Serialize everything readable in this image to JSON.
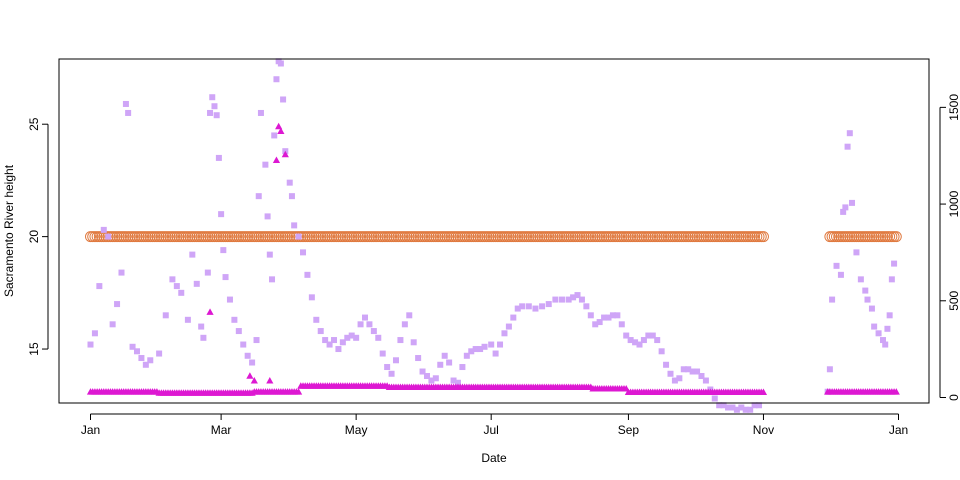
{
  "chart_data": {
    "type": "scatter",
    "title": "",
    "xlabel": "Date",
    "ylabel": "Sacramento River height",
    "x_axis": {
      "type": "date",
      "range": [
        "2011-01-01",
        "2012-01-01"
      ],
      "ticks": [
        {
          "date": "2011-01-01",
          "label": "Jan"
        },
        {
          "date": "2011-03-01",
          "label": "Mar"
        },
        {
          "date": "2011-05-01",
          "label": "May"
        },
        {
          "date": "2011-07-01",
          "label": "Jul"
        },
        {
          "date": "2011-09-01",
          "label": "Sep"
        },
        {
          "date": "2011-11-01",
          "label": "Nov"
        },
        {
          "date": "2012-01-01",
          "label": "Jan"
        }
      ]
    },
    "y_axis_left": {
      "range": [
        12.6,
        27.9
      ],
      "ticks": [
        {
          "value": 15,
          "label": "15"
        },
        {
          "value": 20,
          "label": "20"
        },
        {
          "value": 25,
          "label": "25"
        }
      ]
    },
    "y_axis_right": {
      "range": [
        0,
        1750
      ],
      "ticks": [
        {
          "value": 0,
          "label": "0"
        },
        {
          "value": 500,
          "label": "500"
        },
        {
          "value": 1000,
          "label": "1000"
        },
        {
          "value": 1500,
          "label": "1500"
        }
      ]
    },
    "grid": false,
    "legend": "none",
    "series": [
      {
        "axis": "left",
        "marker": "circle",
        "color": "#e07a40",
        "segments": [
          {
            "start": "2011-01-01",
            "end": "2011-11-01",
            "y": 20
          },
          {
            "start": "2011-12-01",
            "end": "2011-12-31",
            "y": 20
          }
        ]
      },
      {
        "axis": "left",
        "marker": "square",
        "color": "#cfa5f7",
        "gap": [
          "2011-11-02",
          "2011-11-29"
        ],
        "points": [
          [
            "2011-01-01",
            15.2
          ],
          [
            "2011-01-03",
            15.7
          ],
          [
            "2011-01-05",
            17.8
          ],
          [
            "2011-01-07",
            20.3
          ],
          [
            "2011-01-09",
            20.0
          ],
          [
            "2011-01-11",
            16.1
          ],
          [
            "2011-01-13",
            17.0
          ],
          [
            "2011-01-15",
            18.4
          ],
          [
            "2011-01-17",
            25.9
          ],
          [
            "2011-01-18",
            25.5
          ],
          [
            "2011-01-20",
            15.1
          ],
          [
            "2011-01-22",
            14.9
          ],
          [
            "2011-01-24",
            14.6
          ],
          [
            "2011-01-26",
            14.3
          ],
          [
            "2011-01-28",
            14.5
          ],
          [
            "2011-02-01",
            14.8
          ],
          [
            "2011-02-04",
            16.5
          ],
          [
            "2011-02-07",
            18.1
          ],
          [
            "2011-02-09",
            17.8
          ],
          [
            "2011-02-11",
            17.5
          ],
          [
            "2011-02-14",
            16.3
          ],
          [
            "2011-02-16",
            19.2
          ],
          [
            "2011-02-18",
            17.9
          ],
          [
            "2011-02-20",
            16.0
          ],
          [
            "2011-02-21",
            15.5
          ],
          [
            "2011-02-23",
            18.4
          ],
          [
            "2011-02-24",
            25.5
          ],
          [
            "2011-02-25",
            26.2
          ],
          [
            "2011-02-26",
            25.8
          ],
          [
            "2011-02-27",
            25.4
          ],
          [
            "2011-02-28",
            23.5
          ],
          [
            "2011-03-01",
            21.0
          ],
          [
            "2011-03-02",
            19.4
          ],
          [
            "2011-03-03",
            18.2
          ],
          [
            "2011-03-05",
            17.2
          ],
          [
            "2011-03-07",
            16.3
          ],
          [
            "2011-03-09",
            15.8
          ],
          [
            "2011-03-11",
            15.2
          ],
          [
            "2011-03-13",
            14.7
          ],
          [
            "2011-03-15",
            14.4
          ],
          [
            "2011-03-17",
            15.4
          ],
          [
            "2011-03-18",
            21.8
          ],
          [
            "2011-03-19",
            25.5
          ],
          [
            "2011-03-21",
            23.2
          ],
          [
            "2011-03-22",
            20.9
          ],
          [
            "2011-03-23",
            19.2
          ],
          [
            "2011-03-24",
            18.1
          ],
          [
            "2011-03-25",
            24.5
          ],
          [
            "2011-03-26",
            27.0
          ],
          [
            "2011-03-27",
            27.8
          ],
          [
            "2011-03-28",
            27.7
          ],
          [
            "2011-03-29",
            26.1
          ],
          [
            "2011-03-30",
            23.8
          ],
          [
            "2011-04-01",
            22.4
          ],
          [
            "2011-04-02",
            21.8
          ],
          [
            "2011-04-03",
            20.5
          ],
          [
            "2011-04-05",
            20.0
          ],
          [
            "2011-04-07",
            19.3
          ],
          [
            "2011-04-09",
            18.3
          ],
          [
            "2011-04-11",
            17.3
          ],
          [
            "2011-04-13",
            16.3
          ],
          [
            "2011-04-15",
            15.8
          ],
          [
            "2011-04-17",
            15.4
          ],
          [
            "2011-04-19",
            15.2
          ],
          [
            "2011-04-21",
            15.4
          ],
          [
            "2011-04-23",
            15.0
          ],
          [
            "2011-04-25",
            15.3
          ],
          [
            "2011-04-27",
            15.5
          ],
          [
            "2011-04-29",
            15.6
          ],
          [
            "2011-05-01",
            15.5
          ],
          [
            "2011-05-03",
            16.1
          ],
          [
            "2011-05-05",
            16.4
          ],
          [
            "2011-05-07",
            16.1
          ],
          [
            "2011-05-09",
            15.8
          ],
          [
            "2011-05-11",
            15.5
          ],
          [
            "2011-05-13",
            14.8
          ],
          [
            "2011-05-15",
            14.2
          ],
          [
            "2011-05-17",
            13.9
          ],
          [
            "2011-05-19",
            14.5
          ],
          [
            "2011-05-21",
            15.4
          ],
          [
            "2011-05-23",
            16.1
          ],
          [
            "2011-05-25",
            16.5
          ],
          [
            "2011-05-27",
            15.3
          ],
          [
            "2011-05-29",
            14.6
          ],
          [
            "2011-05-31",
            14.0
          ],
          [
            "2011-06-02",
            13.8
          ],
          [
            "2011-06-04",
            13.6
          ],
          [
            "2011-06-06",
            13.7
          ],
          [
            "2011-06-08",
            14.3
          ],
          [
            "2011-06-10",
            14.7
          ],
          [
            "2011-06-12",
            14.4
          ],
          [
            "2011-06-14",
            13.6
          ],
          [
            "2011-06-16",
            13.5
          ],
          [
            "2011-06-18",
            14.2
          ],
          [
            "2011-06-20",
            14.7
          ],
          [
            "2011-06-22",
            14.9
          ],
          [
            "2011-06-24",
            15.0
          ],
          [
            "2011-06-26",
            15.0
          ],
          [
            "2011-06-28",
            15.1
          ],
          [
            "2011-07-01",
            15.2
          ],
          [
            "2011-07-03",
            14.8
          ],
          [
            "2011-07-05",
            15.2
          ],
          [
            "2011-07-07",
            15.7
          ],
          [
            "2011-07-09",
            16.0
          ],
          [
            "2011-07-11",
            16.4
          ],
          [
            "2011-07-13",
            16.8
          ],
          [
            "2011-07-15",
            16.9
          ],
          [
            "2011-07-18",
            16.9
          ],
          [
            "2011-07-21",
            16.8
          ],
          [
            "2011-07-24",
            16.9
          ],
          [
            "2011-07-27",
            17.0
          ],
          [
            "2011-07-30",
            17.2
          ],
          [
            "2011-08-02",
            17.2
          ],
          [
            "2011-08-05",
            17.2
          ],
          [
            "2011-08-07",
            17.3
          ],
          [
            "2011-08-09",
            17.4
          ],
          [
            "2011-08-11",
            17.2
          ],
          [
            "2011-08-13",
            16.9
          ],
          [
            "2011-08-15",
            16.5
          ],
          [
            "2011-08-17",
            16.1
          ],
          [
            "2011-08-19",
            16.2
          ],
          [
            "2011-08-21",
            16.4
          ],
          [
            "2011-08-23",
            16.4
          ],
          [
            "2011-08-25",
            16.5
          ],
          [
            "2011-08-27",
            16.5
          ],
          [
            "2011-08-29",
            16.1
          ],
          [
            "2011-08-31",
            15.6
          ],
          [
            "2011-09-02",
            15.4
          ],
          [
            "2011-09-04",
            15.3
          ],
          [
            "2011-09-06",
            15.2
          ],
          [
            "2011-09-08",
            15.4
          ],
          [
            "2011-09-10",
            15.6
          ],
          [
            "2011-09-12",
            15.6
          ],
          [
            "2011-09-14",
            15.4
          ],
          [
            "2011-09-16",
            14.9
          ],
          [
            "2011-09-18",
            14.3
          ],
          [
            "2011-09-20",
            13.9
          ],
          [
            "2011-09-22",
            13.6
          ],
          [
            "2011-09-24",
            13.7
          ],
          [
            "2011-09-26",
            14.1
          ],
          [
            "2011-09-28",
            14.1
          ],
          [
            "2011-09-30",
            14.0
          ],
          [
            "2011-10-02",
            14.0
          ],
          [
            "2011-10-04",
            13.8
          ],
          [
            "2011-10-06",
            13.6
          ],
          [
            "2011-10-08",
            13.2
          ],
          [
            "2011-10-10",
            12.8
          ],
          [
            "2011-10-12",
            12.5
          ],
          [
            "2011-10-14",
            12.5
          ],
          [
            "2011-10-16",
            12.4
          ],
          [
            "2011-10-18",
            12.4
          ],
          [
            "2011-10-20",
            12.3
          ],
          [
            "2011-10-22",
            12.4
          ],
          [
            "2011-10-24",
            12.3
          ],
          [
            "2011-10-26",
            12.3
          ],
          [
            "2011-10-28",
            12.5
          ],
          [
            "2011-10-30",
            12.5
          ],
          [
            "2011-11-30",
            13.1
          ],
          [
            "2011-12-01",
            14.1
          ],
          [
            "2011-12-02",
            17.2
          ],
          [
            "2011-12-04",
            18.7
          ],
          [
            "2011-12-06",
            18.3
          ],
          [
            "2011-12-07",
            21.1
          ],
          [
            "2011-12-08",
            21.3
          ],
          [
            "2011-12-09",
            24.0
          ],
          [
            "2011-12-10",
            24.6
          ],
          [
            "2011-12-11",
            21.5
          ],
          [
            "2011-12-13",
            19.3
          ],
          [
            "2011-12-15",
            18.1
          ],
          [
            "2011-12-17",
            17.6
          ],
          [
            "2011-12-18",
            17.2
          ],
          [
            "2011-12-20",
            16.8
          ],
          [
            "2011-12-21",
            16.0
          ],
          [
            "2011-12-23",
            15.7
          ],
          [
            "2011-12-25",
            15.4
          ],
          [
            "2011-12-26",
            15.2
          ],
          [
            "2011-12-27",
            15.9
          ],
          [
            "2011-12-28",
            16.5
          ],
          [
            "2011-12-29",
            18.1
          ],
          [
            "2011-12-30",
            18.8
          ]
        ]
      },
      {
        "axis": "right",
        "marker": "triangle",
        "color": "#dd18d2",
        "gap": [
          "2011-11-02",
          "2011-11-29"
        ],
        "baseline": [
          {
            "start": "2011-01-01",
            "end": "2011-01-31",
            "value": 28
          },
          {
            "start": "2011-02-01",
            "end": "2011-03-15",
            "value": 22
          },
          {
            "start": "2011-03-16",
            "end": "2011-04-05",
            "value": 28
          },
          {
            "start": "2011-04-06",
            "end": "2011-05-15",
            "value": 58
          },
          {
            "start": "2011-05-16",
            "end": "2011-08-15",
            "value": 52
          },
          {
            "start": "2011-08-16",
            "end": "2011-08-31",
            "value": 44
          },
          {
            "start": "2011-09-01",
            "end": "2011-11-01",
            "value": 26
          },
          {
            "start": "2011-11-30",
            "end": "2011-12-31",
            "value": 28
          }
        ],
        "points": [
          [
            "2011-02-24",
            440
          ],
          [
            "2011-03-14",
            110
          ],
          [
            "2011-03-16",
            85
          ],
          [
            "2011-03-23",
            85
          ],
          [
            "2011-03-26",
            1225
          ],
          [
            "2011-03-27",
            1400
          ],
          [
            "2011-03-28",
            1375
          ],
          [
            "2011-03-30",
            1255
          ]
        ]
      }
    ]
  }
}
